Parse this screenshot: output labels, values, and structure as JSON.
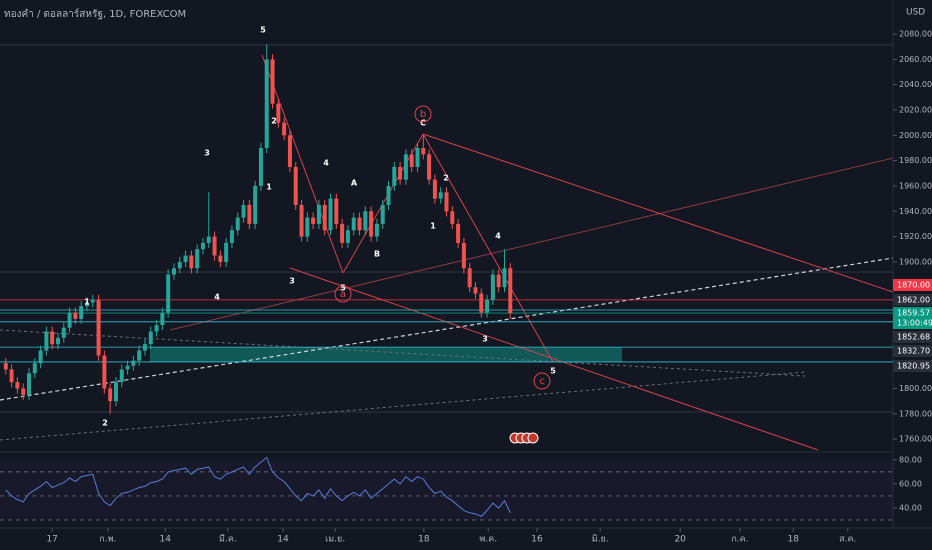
{
  "chart_data": {
    "type": "candlestick",
    "title": "ทองคำ / ดอลลาร์สหรัฐ, 1D, FOREXCOM",
    "currency": "USD",
    "up_color": "#26a69a",
    "down_color": "#ef5350",
    "open": [
      1820,
      1815,
      1805,
      1800,
      1795,
      1812,
      1820,
      1830,
      1845,
      1835,
      1840,
      1848,
      1860,
      1855,
      1865,
      1868,
      1870,
      1826,
      1800,
      1790,
      1805,
      1815,
      1818,
      1822,
      1830,
      1835,
      1845,
      1850,
      1860,
      1890,
      1895,
      1900,
      1905,
      1895,
      1910,
      1915,
      1920,
      1905,
      1900,
      1915,
      1925,
      1935,
      1945,
      1930,
      1960,
      1990,
      2060,
      2025,
      2010,
      2000,
      1975,
      1945,
      1920,
      1935,
      1930,
      1945,
      1925,
      1950,
      1930,
      1915,
      1925,
      1935,
      1925,
      1940,
      1920,
      1930,
      1945,
      1960,
      1975,
      1965,
      1985,
      1975,
      1990,
      1985,
      1965,
      1950,
      1955,
      1940,
      1930,
      1915,
      1895,
      1880,
      1875,
      1860,
      1870,
      1890,
      1880,
      1895
    ],
    "high": [
      1824,
      1819,
      1809,
      1804,
      1816,
      1824,
      1834,
      1849,
      1849,
      1844,
      1852,
      1864,
      1864,
      1869,
      1872,
      1874,
      1874,
      1830,
      1804,
      1809,
      1819,
      1822,
      1826,
      1834,
      1839,
      1849,
      1854,
      1864,
      1894,
      1899,
      1904,
      1909,
      1909,
      1914,
      1919,
      1955,
      1924,
      1909,
      1919,
      1929,
      1939,
      1949,
      1949,
      1964,
      1994,
      2072,
      2064,
      2029,
      2014,
      2004,
      1979,
      1949,
      1939,
      1939,
      1949,
      1949,
      1954,
      1954,
      1934,
      1929,
      1939,
      1939,
      1944,
      1944,
      1934,
      1949,
      1964,
      1979,
      1979,
      1989,
      1989,
      1994,
      2000,
      1989,
      1969,
      1959,
      1959,
      1944,
      1934,
      1919,
      1899,
      1884,
      1879,
      1874,
      1894,
      1894,
      1910,
      1899
    ],
    "low": [
      1811,
      1801,
      1796,
      1791,
      1791,
      1808,
      1816,
      1826,
      1831,
      1831,
      1836,
      1844,
      1851,
      1851,
      1861,
      1864,
      1822,
      1796,
      1780,
      1786,
      1801,
      1811,
      1814,
      1818,
      1826,
      1831,
      1841,
      1846,
      1856,
      1886,
      1891,
      1896,
      1891,
      1891,
      1906,
      1911,
      1901,
      1896,
      1896,
      1911,
      1921,
      1931,
      1926,
      1926,
      1956,
      1986,
      2021,
      2006,
      1996,
      1971,
      1941,
      1916,
      1916,
      1926,
      1926,
      1921,
      1921,
      1926,
      1911,
      1911,
      1921,
      1921,
      1921,
      1916,
      1916,
      1926,
      1941,
      1956,
      1961,
      1961,
      1971,
      1971,
      1981,
      1961,
      1946,
      1946,
      1936,
      1926,
      1911,
      1891,
      1876,
      1871,
      1856,
      1856,
      1866,
      1876,
      1876,
      1855
    ],
    "close": [
      1815,
      1805,
      1800,
      1795,
      1812,
      1820,
      1830,
      1845,
      1835,
      1840,
      1848,
      1860,
      1855,
      1865,
      1868,
      1870,
      1826,
      1800,
      1790,
      1805,
      1815,
      1818,
      1822,
      1830,
      1835,
      1845,
      1850,
      1860,
      1890,
      1895,
      1900,
      1905,
      1895,
      1910,
      1915,
      1920,
      1905,
      1900,
      1915,
      1925,
      1935,
      1945,
      1930,
      1960,
      1990,
      2060,
      2025,
      2010,
      2000,
      1975,
      1945,
      1920,
      1935,
      1930,
      1945,
      1925,
      1950,
      1930,
      1915,
      1925,
      1935,
      1925,
      1940,
      1920,
      1930,
      1945,
      1960,
      1975,
      1965,
      1985,
      1975,
      1990,
      1985,
      1965,
      1950,
      1955,
      1940,
      1930,
      1915,
      1895,
      1880,
      1875,
      1860,
      1870,
      1890,
      1880,
      1895,
      1859.57
    ],
    "xlim": [
      -1,
      153
    ],
    "xticks": [
      {
        "value": 8,
        "label": "17"
      },
      {
        "value": 17.6,
        "label": "ก.พ."
      },
      {
        "value": 27.5,
        "label": "14"
      },
      {
        "value": 38.3,
        "label": "มี.ค."
      },
      {
        "value": 47.8,
        "label": "14"
      },
      {
        "value": 56.8,
        "label": "เม.ย."
      },
      {
        "value": 72.1,
        "label": "18"
      },
      {
        "value": 83.2,
        "label": "พ.ค."
      },
      {
        "value": 91.6,
        "label": "16"
      },
      {
        "value": 102.5,
        "label": "มิ.ย."
      },
      {
        "value": 116.3,
        "label": "20"
      },
      {
        "value": 126.6,
        "label": "ก.ค."
      },
      {
        "value": 135.8,
        "label": "18"
      },
      {
        "value": 145.2,
        "label": "ส.ค."
      }
    ],
    "ylim": [
      1735.6,
      2106.9
    ],
    "yticks": [
      {
        "value": 1760,
        "label": "1760.00"
      },
      {
        "value": 1780,
        "label": "1780.00"
      },
      {
        "value": 1800,
        "label": "1800.00"
      },
      {
        "value": 1900,
        "label": "1900.00"
      },
      {
        "value": 1920,
        "label": "1920.00"
      },
      {
        "value": 1940,
        "label": "1940.00"
      },
      {
        "value": 1960,
        "label": "1960.00"
      },
      {
        "value": 1980,
        "label": "1980.00"
      },
      {
        "value": 2000,
        "label": "2000.00"
      },
      {
        "value": 2020,
        "label": "2020.00"
      },
      {
        "value": 2040,
        "label": "2040.00"
      },
      {
        "value": 2060,
        "label": "2060.00"
      },
      {
        "value": 2080,
        "label": "2080.00"
      }
    ],
    "price_labels": [
      {
        "value": 1870,
        "label": "1870.00",
        "color": "#f23645"
      },
      {
        "value": 1862,
        "label": "1862.00",
        "color": "#2a2e39"
      },
      {
        "value": 1859.57,
        "label": "1859.57",
        "countdown": "13:00:49",
        "color": "#089981"
      },
      {
        "value": 1852.68,
        "label": "1852.68",
        "color": "#2a2e39"
      },
      {
        "value": 1832.7,
        "label": "1832.70",
        "color": "#2a2e39"
      },
      {
        "value": 1820.95,
        "label": "1820.95",
        "color": "#2a2e39"
      }
    ],
    "rsi": {
      "color": "#5b7bd6",
      "values": [
        55,
        50,
        47,
        45,
        52,
        55,
        58,
        62,
        57,
        59,
        61,
        65,
        62,
        66,
        67,
        68,
        52,
        45,
        42,
        48,
        52,
        53,
        55,
        57,
        58,
        61,
        62,
        64,
        70,
        71,
        72,
        73,
        68,
        72,
        73,
        74,
        66,
        64,
        68,
        70,
        72,
        74,
        68,
        74,
        78,
        82,
        70,
        65,
        62,
        56,
        50,
        46,
        52,
        50,
        55,
        48,
        56,
        50,
        46,
        50,
        53,
        50,
        55,
        48,
        52,
        56,
        60,
        64,
        60,
        66,
        62,
        66,
        64,
        57,
        52,
        54,
        49,
        46,
        42,
        38,
        36,
        35,
        33,
        38,
        44,
        40,
        46,
        36
      ],
      "ylim": [
        30,
        84
      ],
      "yticks": [
        {
          "value": 40,
          "label": "40.00"
        },
        {
          "value": 60,
          "label": "60.00"
        },
        {
          "value": 80,
          "label": "80.00"
        }
      ],
      "levels": [
        30,
        50,
        70
      ]
    },
    "annotations": [
      "5",
      "2",
      "3",
      "1",
      "4",
      "3",
      "4",
      "A",
      "B",
      "C",
      "2",
      "1",
      "4",
      "3",
      "5",
      "1",
      "2",
      "5"
    ],
    "circled_annotations": [
      "b",
      "a",
      "c"
    ]
  }
}
